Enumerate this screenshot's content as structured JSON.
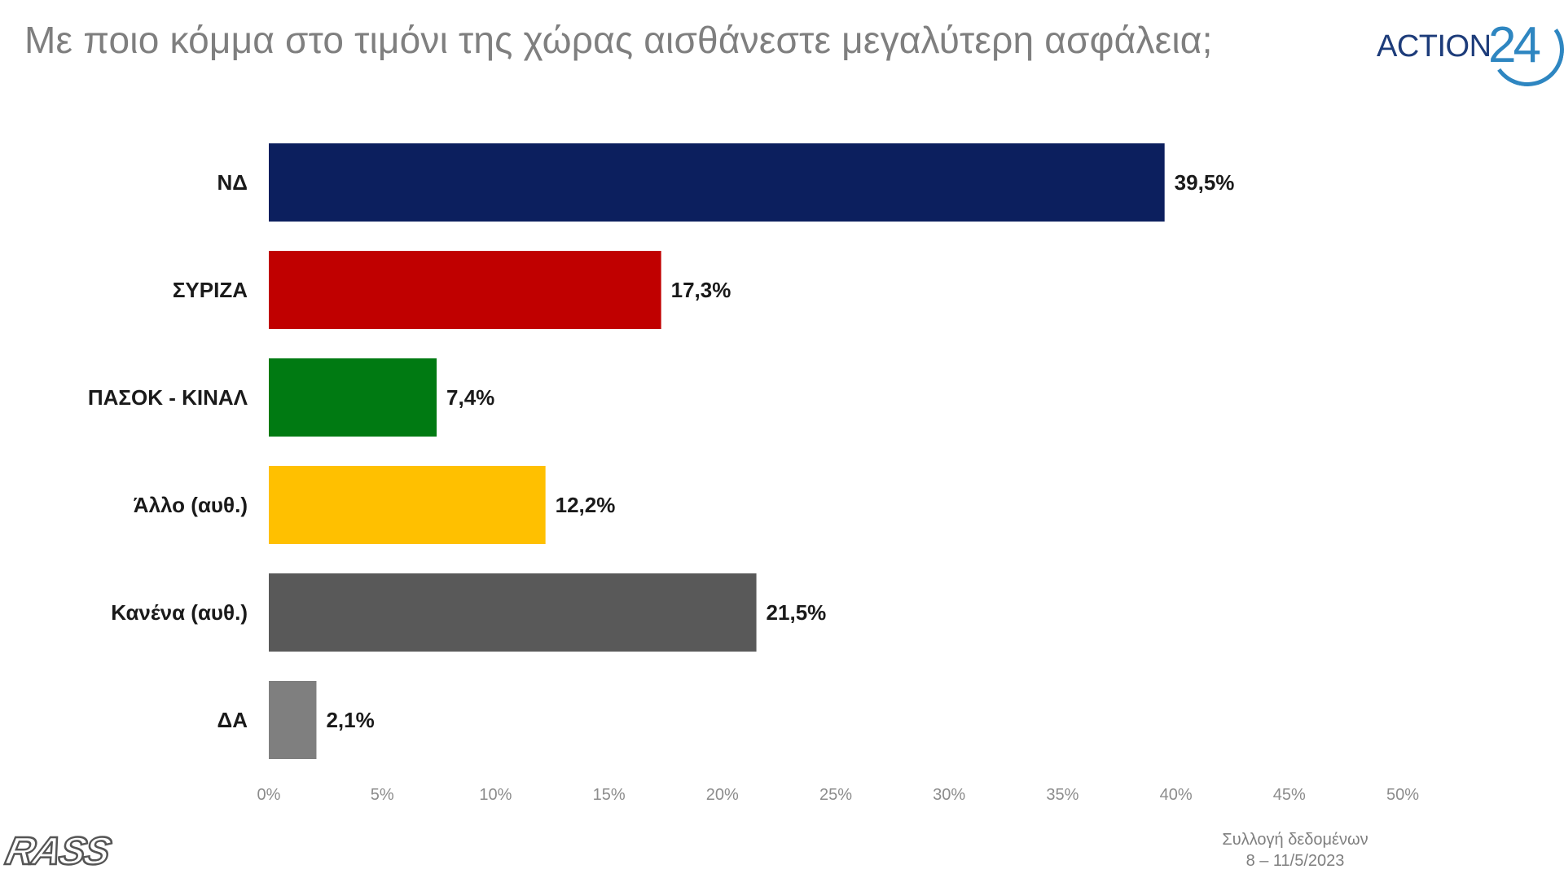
{
  "header": {
    "title": "Με ποιο κόμμα στο τιμόνι της χώρας αισθάνεστε μεγαλύτερη ασφάλεια;"
  },
  "logo": {
    "word": "ACTION",
    "number": "24"
  },
  "brand": {
    "name": "RASS"
  },
  "footer": {
    "source_line1": "Συλλογή δεδομένων",
    "source_line2": "8 – 11/5/2023"
  },
  "colors": {
    "nd": "#0c1f5e",
    "syriza": "#c00000",
    "pasok": "#007a12",
    "other": "#ffc000",
    "none": "#595959",
    "dk": "#7f7f7f"
  },
  "chart_data": {
    "type": "bar",
    "orientation": "horizontal",
    "title": "Με ποιο κόμμα στο τιμόνι της χώρας αισθάνεστε μεγαλύτερη ασφάλεια;",
    "categories": [
      "ΝΔ",
      "ΣΥΡΙΖΑ",
      "ΠΑΣΟΚ - ΚΙΝΑΛ",
      "Άλλο (αυθ.)",
      "Κανένα (αυθ.)",
      "ΔΑ"
    ],
    "values": [
      39.5,
      17.3,
      7.4,
      12.2,
      21.5,
      2.1
    ],
    "value_labels": [
      "39,5%",
      "17,3%",
      "7,4%",
      "12,2%",
      "21,5%",
      "2,1%"
    ],
    "bar_colors": [
      "#0c1f5e",
      "#c00000",
      "#007a12",
      "#ffc000",
      "#595959",
      "#7f7f7f"
    ],
    "xlim": [
      0,
      50
    ],
    "x_ticks": [
      0,
      5,
      10,
      15,
      20,
      25,
      30,
      35,
      40,
      45,
      50
    ],
    "x_tick_labels": [
      "0%",
      "5%",
      "10%",
      "15%",
      "20%",
      "25%",
      "30%",
      "35%",
      "40%",
      "45%",
      "50%"
    ],
    "grid": false,
    "legend": "none"
  }
}
